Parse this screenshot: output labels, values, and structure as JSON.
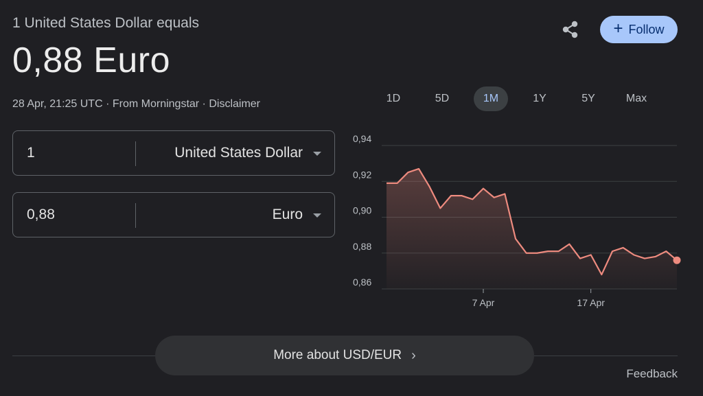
{
  "header": {
    "subtitle": "1 United States Dollar equals",
    "rate": "0,88 Euro",
    "timestamp": "28 Apr, 21:25 UTC",
    "separator": " · ",
    "source": "From Morningstar",
    "disclaimer": "Disclaimer"
  },
  "actions": {
    "share_icon": "share-icon",
    "follow_label": "Follow"
  },
  "converter": {
    "from": {
      "amount": "1",
      "currency": "United States Dollar"
    },
    "to": {
      "amount": "0,88",
      "currency": "Euro"
    }
  },
  "ranges": [
    {
      "label": "1D",
      "active": false
    },
    {
      "label": "5D",
      "active": false
    },
    {
      "label": "1M",
      "active": true
    },
    {
      "label": "1Y",
      "active": false
    },
    {
      "label": "5Y",
      "active": false
    },
    {
      "label": "Max",
      "active": false
    }
  ],
  "chart_data": {
    "type": "area",
    "ylim": [
      0.86,
      0.94
    ],
    "y_ticks": [
      "0,94",
      "0,92",
      "0,90",
      "0,88",
      "0,86"
    ],
    "y_tick_values": [
      0.94,
      0.92,
      0.9,
      0.88,
      0.86
    ],
    "x_ticks": [
      {
        "label": "7 Apr",
        "index": 9
      },
      {
        "label": "17 Apr",
        "index": 19
      }
    ],
    "grid": true,
    "line_color": "#ee8b7f",
    "series": [
      {
        "values": [
          0.919,
          0.919,
          0.925,
          0.927,
          0.917,
          0.905,
          0.912,
          0.912,
          0.91,
          0.916,
          0.911,
          0.913,
          0.888,
          0.88,
          0.88,
          0.881,
          0.881,
          0.885,
          0.877,
          0.879,
          0.868,
          0.881,
          0.883,
          0.879,
          0.877,
          0.878,
          0.881,
          0.876
        ]
      }
    ]
  },
  "footer": {
    "more_label": "More about USD/EUR",
    "feedback": "Feedback"
  }
}
